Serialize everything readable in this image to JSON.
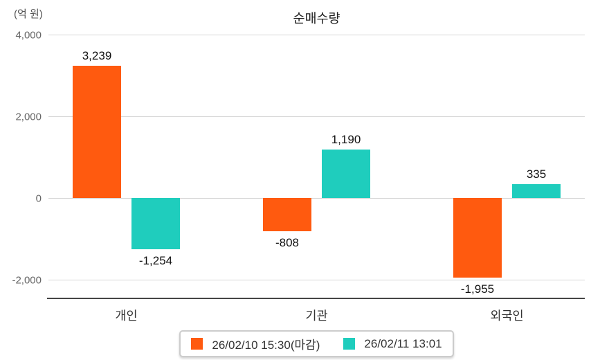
{
  "unit_label": "(억 원)",
  "title": "순매수량",
  "chart_data": {
    "type": "bar",
    "title": "순매수량",
    "ylabel": "(억 원)",
    "xlabel": "",
    "categories": [
      "개인",
      "기관",
      "외국인"
    ],
    "series": [
      {
        "name": "26/02/10 15:30(마감)",
        "color": "#ff5a0f",
        "values": [
          3239,
          -808,
          -1955
        ],
        "labels": [
          "3,239",
          "-808",
          "-1,955"
        ]
      },
      {
        "name": "26/02/11 13:01",
        "color": "#1fcdbd",
        "values": [
          -1254,
          1190,
          335
        ],
        "labels": [
          "-1,254",
          "1,190",
          "335"
        ]
      }
    ],
    "y_ticks": [
      {
        "value": 4000,
        "label": "4,000"
      },
      {
        "value": 2000,
        "label": "2,000"
      },
      {
        "value": 0,
        "label": "0"
      },
      {
        "value": -2000,
        "label": "-2,000"
      }
    ],
    "ylim": [
      -2440,
      4000
    ],
    "grid": true,
    "legend_position": "bottom"
  },
  "colors": {
    "gridline": "#d6d6d6",
    "axis_line": "#454545",
    "tick_text": "#666666",
    "value_text": "#111111"
  }
}
